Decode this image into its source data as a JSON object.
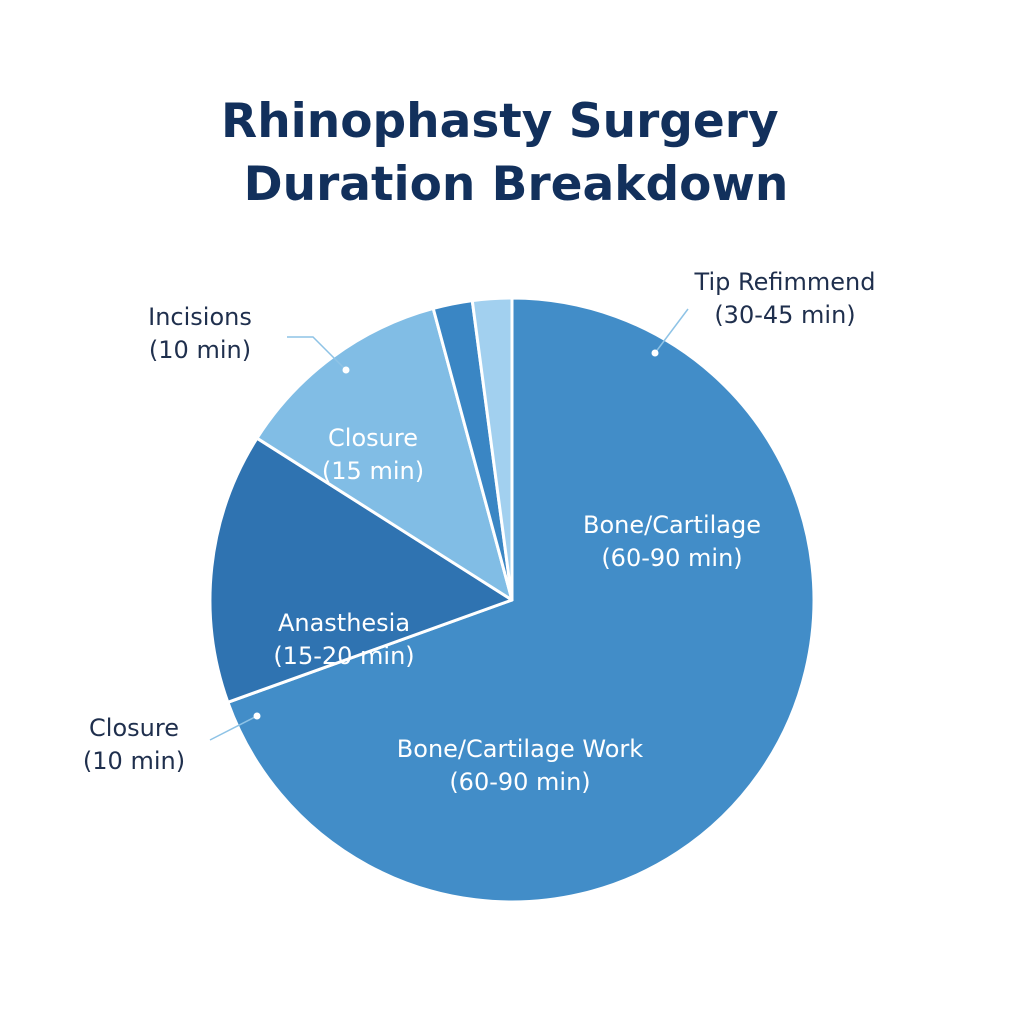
{
  "colors": {
    "title": "#12305c",
    "outside_label": "#1f2f4d",
    "inside_label": "#ffffff",
    "leader_line": "#8ec3e6",
    "slice_border": "#ffffff"
  },
  "chart_data": {
    "type": "pie",
    "title_lines": [
      "Rhinophasty Surgery",
      "Duration Breakdown"
    ],
    "slices": [
      {
        "id": "bone-work",
        "share": 0.695,
        "color": "#428dc8",
        "placement": "inside",
        "label_lines": [
          "Bone/Cartilage Work",
          "(60-90 min)"
        ]
      },
      {
        "id": "anesthesia",
        "share": 0.145,
        "color": "#2f73b1",
        "placement": "inside",
        "label_lines": [
          "Anasthesia",
          "(15-20 min)"
        ]
      },
      {
        "id": "closure-inner",
        "share": 0.118,
        "color": "#81bde5",
        "placement": "inside",
        "label_lines": [
          "Closure",
          "(15 min)"
        ]
      },
      {
        "id": "sliver-dark",
        "share": 0.021,
        "color": "#3a86c4",
        "placement": "none",
        "label_lines": []
      },
      {
        "id": "sliver-light",
        "share": 0.021,
        "color": "#a2d0ef",
        "placement": "none",
        "label_lines": []
      }
    ],
    "extra_labels": [
      {
        "id": "bone-cartilage",
        "placement": "inside",
        "label_lines": [
          "Bone/Cartilage",
          "(60-90 min)"
        ]
      },
      {
        "id": "tip-refinement",
        "placement": "outside",
        "label_lines": [
          "Tip Refimmend",
          "(30-45 min)"
        ]
      },
      {
        "id": "incisions",
        "placement": "outside",
        "label_lines": [
          "Incisions",
          "(10 min)"
        ]
      },
      {
        "id": "closure-outer",
        "placement": "outside",
        "label_lines": [
          "Closure",
          "(10 min)"
        ]
      }
    ]
  }
}
